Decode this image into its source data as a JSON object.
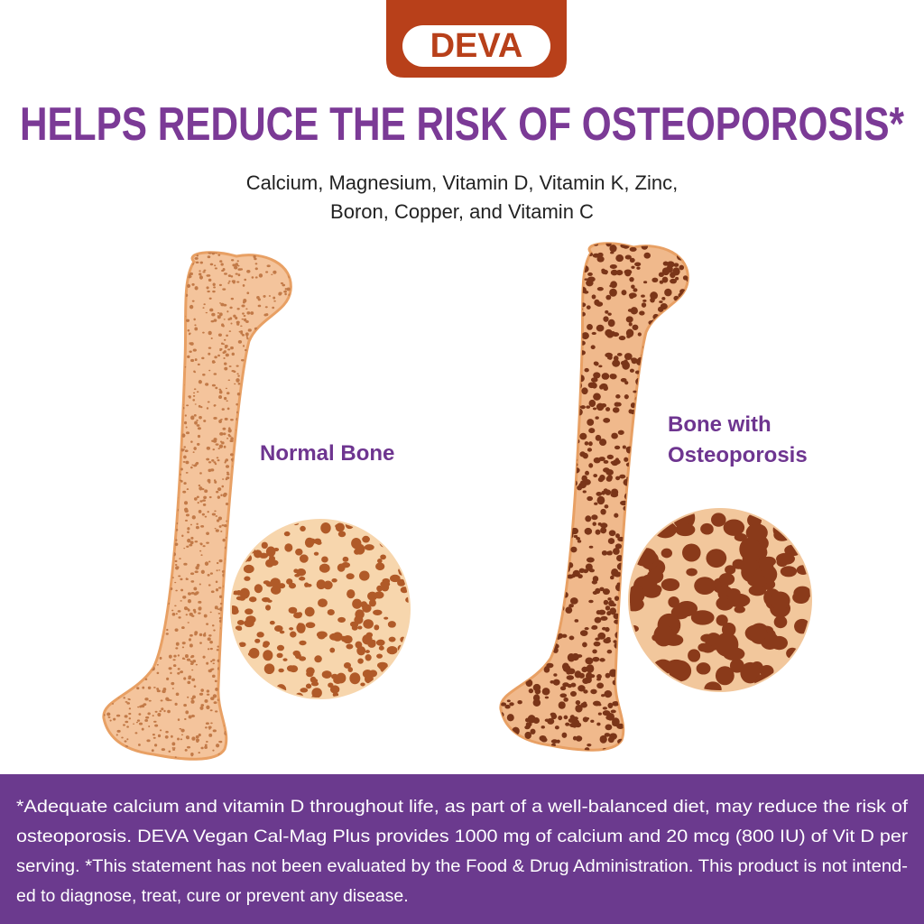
{
  "logo": {
    "brand": "DEVA"
  },
  "header": {
    "title": "HELPS REDUCE THE RISK OF OSTEOPOROSIS*",
    "subtitle": [
      "Calcium, Magnesium, Vitamin D, Vitamin K, Zinc,",
      "Boron, Copper, and Vitamin C"
    ]
  },
  "panels": [
    {
      "label": [
        "Normal Bone"
      ]
    },
    {
      "label": [
        "Bone with",
        "Osteoporosis"
      ]
    }
  ],
  "footnote": {
    "lines": [
      "*Adequate calcium and vitamin D throughout life, as part of a well-balanced diet, may reduce the risk of",
      "osteoporosis. DEVA Vegan Cal-Mag Plus provides 1000 mg of calcium and 20 mcg (800 IU) of Vit D per",
      "serving. *This statement has not been evaluated by the Food & Drug Administration. This product is not intend-",
      "ed to diagnose, treat, cure or prevent any disease."
    ]
  }
}
